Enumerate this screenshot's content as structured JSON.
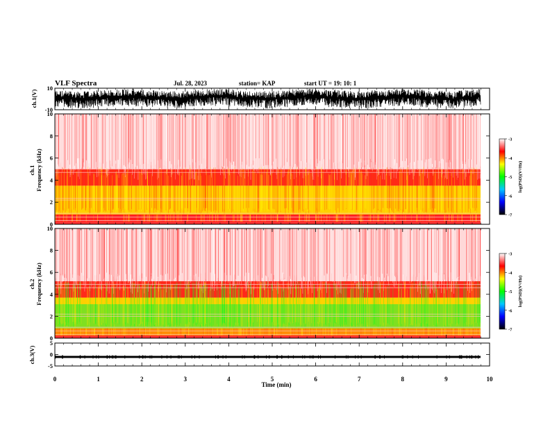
{
  "header": {
    "title": "VLF Spectra",
    "date": "Jul. 28, 2023",
    "station": "station= KAP",
    "start": "start UT =  19: 10: 1"
  },
  "colors": {
    "axis": "#000000",
    "scale": [
      "#000000",
      "#0000ff",
      "#00c8ff",
      "#00ff00",
      "#ffff00",
      "#ff0000",
      "#ffffff"
    ]
  },
  "chart_data": [
    {
      "type": "line",
      "panel": "ch1-waveform",
      "ylabel": "ch.1(V)",
      "ylim": [
        -10,
        10
      ],
      "yticks": [
        "10",
        "-10"
      ],
      "xlim": [
        0,
        9.85
      ],
      "style": "dense oscillating trace, mostly between -5 and 8"
    },
    {
      "type": "heatmap",
      "panel": "ch1-spectrogram",
      "ylabel": "ch.1 Frequency (kHz)",
      "ylim": [
        0,
        10
      ],
      "yticks": [
        "10",
        "8",
        "6",
        "4",
        "2",
        "0"
      ],
      "xlim": [
        0,
        9.85
      ],
      "bands": [
        {
          "from": 0,
          "to": 0.25,
          "color": "#ff3030"
        },
        {
          "from": 0.25,
          "to": 0.9,
          "color": "#ff2020"
        },
        {
          "from": 0.9,
          "to": 3.5,
          "color": "#ffd000"
        },
        {
          "from": 3.5,
          "to": 5.0,
          "color": "#ff2a1a"
        },
        {
          "from": 5.0,
          "to": 10,
          "color": "#ffd8d8"
        }
      ],
      "lines": [
        0.35,
        0.65,
        1.0,
        2.2,
        2.35,
        4.7,
        5.0
      ],
      "colorbar": {
        "label": "log(PSD)(V²/Hz)",
        "ticks": [
          "-3",
          "-4",
          "-5",
          "-6",
          "-7"
        ],
        "range": [
          -7,
          -3
        ]
      }
    },
    {
      "type": "heatmap",
      "panel": "ch2-spectrogram",
      "ylabel": "ch.2 Frequency (kHz)",
      "ylim": [
        0,
        10
      ],
      "yticks": [
        "10",
        "8",
        "6",
        "4",
        "2",
        "0"
      ],
      "xlim": [
        0,
        9.85
      ],
      "bands": [
        {
          "from": 0,
          "to": 0.25,
          "color": "#ff3030"
        },
        {
          "from": 0.25,
          "to": 0.9,
          "color": "#ff8c00"
        },
        {
          "from": 0.9,
          "to": 3.1,
          "color": "#80e020"
        },
        {
          "from": 3.1,
          "to": 3.7,
          "color": "#ffd000"
        },
        {
          "from": 3.7,
          "to": 5.2,
          "color": "#ff2a1a"
        },
        {
          "from": 5.2,
          "to": 10,
          "color": "#ffd8d8"
        }
      ],
      "lines": [
        0.35,
        0.65,
        1.0,
        2.0,
        2.2,
        4.6,
        4.9
      ],
      "colorbar": {
        "label": "log(PSD)(V²/Hz)",
        "ticks": [
          "-3",
          "-4",
          "-5",
          "-6",
          "-7"
        ],
        "range": [
          -7,
          -3
        ]
      }
    },
    {
      "type": "line",
      "panel": "ch3-waveform",
      "ylabel": "ch.3(V)",
      "ylim": [
        -5,
        5
      ],
      "yticks": [
        "5",
        "0",
        "-5"
      ],
      "xlim": [
        0,
        9.85
      ],
      "style": "thin band centred near -1"
    }
  ],
  "xaxis": {
    "label": "Time (min)",
    "ticks": [
      "0",
      "1",
      "2",
      "3",
      "4",
      "5",
      "6",
      "7",
      "8",
      "9",
      "10"
    ],
    "xlim": [
      0,
      10
    ]
  }
}
